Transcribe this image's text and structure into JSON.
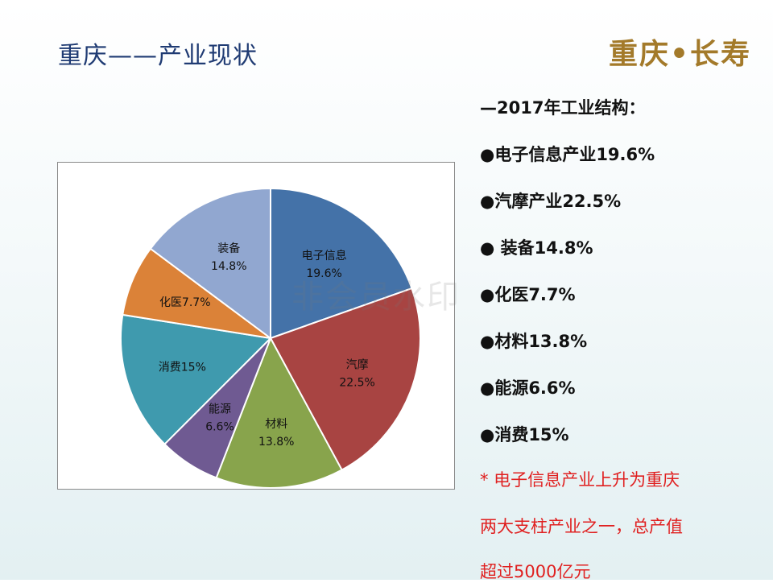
{
  "slide": {
    "title": "重庆——产业现状",
    "logo_text": "重庆•长寿",
    "watermark": "非会员水印"
  },
  "info": {
    "heading": "—2017年工业结构：",
    "items": [
      "●电子信息产业19.6%",
      "●汽摩产业22.5%",
      "● 装备14.8%",
      "●化医7.7%",
      "●材料13.8%",
      "●能源6.6%",
      "●消费15%"
    ],
    "note_lines": [
      "* 电子信息产业上升为重庆",
      "两大支柱产业之一，总产值",
      "超过5000亿元"
    ]
  },
  "chart_data": {
    "type": "pie",
    "title": "",
    "slices": [
      {
        "label": "电子信息",
        "value_label": "19.6%",
        "value": 19.6,
        "color": "#4472a8"
      },
      {
        "label": "汽摩",
        "value_label": "22.5%",
        "value": 22.5,
        "color": "#a84442"
      },
      {
        "label": "材料",
        "value_label": "13.8%",
        "value": 13.8,
        "color": "#88a44c"
      },
      {
        "label": "能源",
        "value_label": "6.6%",
        "value": 6.6,
        "color": "#6f5a92"
      },
      {
        "label": "消费15%",
        "value_label": "",
        "value": 15,
        "color": "#3f9aae"
      },
      {
        "label": "化医7.7%",
        "value_label": "",
        "value": 7.7,
        "color": "#db8238"
      },
      {
        "label": "装备",
        "value_label": "14.8%",
        "value": 14.8,
        "color": "#91a7d0"
      }
    ]
  },
  "colors": {
    "title": "#1f3b73",
    "note": "#e02020",
    "logo": "#a37a2a"
  }
}
